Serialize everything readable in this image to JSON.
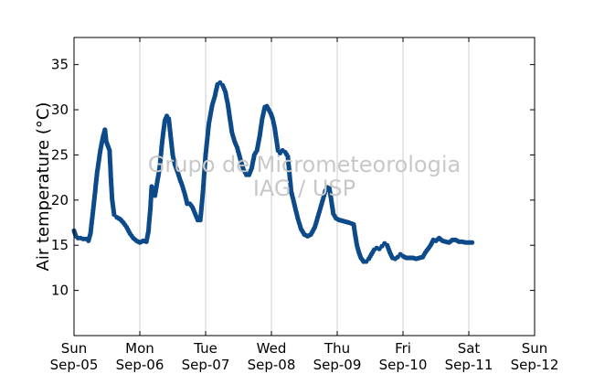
{
  "chart_data": {
    "type": "scatter",
    "title": "",
    "xlabel": "",
    "ylabel": "Air temperature (°C)",
    "ylim": [
      5,
      38
    ],
    "xlim_days": [
      0,
      7
    ],
    "yticks": [
      10,
      15,
      20,
      25,
      30,
      35
    ],
    "x_ticks": [
      {
        "day": "Sun",
        "date": "Sep-05"
      },
      {
        "day": "Mon",
        "date": "Sep-06"
      },
      {
        "day": "Tue",
        "date": "Sep-07"
      },
      {
        "day": "Wed",
        "date": "Sep-08"
      },
      {
        "day": "Thu",
        "date": "Sep-09"
      },
      {
        "day": "Fri",
        "date": "Sep-10"
      },
      {
        "day": "Sat",
        "date": "Sep-11"
      },
      {
        "day": "Sun",
        "date": "Sep-12"
      }
    ],
    "vertical_grid": true,
    "marker_color": "#0d4a8a",
    "watermark": [
      "Grupo de Micrometeorologia",
      "IAG / USP"
    ],
    "series": [
      {
        "values": [
          [
            0.0,
            16.6
          ],
          [
            0.03,
            16.0
          ],
          [
            0.06,
            15.8
          ],
          [
            0.1,
            15.8
          ],
          [
            0.14,
            15.7
          ],
          [
            0.18,
            15.7
          ],
          [
            0.22,
            15.5
          ],
          [
            0.25,
            16.3
          ],
          [
            0.3,
            19.5
          ],
          [
            0.35,
            23.0
          ],
          [
            0.4,
            25.5
          ],
          [
            0.44,
            27.0
          ],
          [
            0.47,
            27.8
          ],
          [
            0.49,
            26.5
          ],
          [
            0.52,
            25.9
          ],
          [
            0.54,
            25.5
          ],
          [
            0.56,
            22.5
          ],
          [
            0.58,
            20.0
          ],
          [
            0.61,
            18.4
          ],
          [
            0.65,
            18.1
          ],
          [
            0.7,
            17.9
          ],
          [
            0.75,
            17.5
          ],
          [
            0.8,
            17.0
          ],
          [
            0.85,
            16.3
          ],
          [
            0.9,
            15.8
          ],
          [
            0.95,
            15.5
          ],
          [
            1.0,
            15.3
          ],
          [
            1.05,
            15.5
          ],
          [
            1.1,
            15.4
          ],
          [
            1.13,
            16.5
          ],
          [
            1.16,
            19.0
          ],
          [
            1.18,
            21.5
          ],
          [
            1.2,
            21.0
          ],
          [
            1.23,
            20.5
          ],
          [
            1.26,
            21.8
          ],
          [
            1.3,
            23.5
          ],
          [
            1.34,
            26.5
          ],
          [
            1.38,
            28.8
          ],
          [
            1.41,
            29.3
          ],
          [
            1.44,
            29.0
          ],
          [
            1.47,
            27.0
          ],
          [
            1.5,
            25.0
          ],
          [
            1.53,
            24.0
          ],
          [
            1.57,
            23.2
          ],
          [
            1.61,
            22.3
          ],
          [
            1.65,
            21.5
          ],
          [
            1.69,
            20.5
          ],
          [
            1.72,
            19.6
          ],
          [
            1.76,
            19.6
          ],
          [
            1.8,
            19.2
          ],
          [
            1.84,
            18.5
          ],
          [
            1.88,
            17.8
          ],
          [
            1.92,
            17.8
          ],
          [
            1.96,
            21.0
          ],
          [
            2.0,
            25.0
          ],
          [
            2.05,
            28.5
          ],
          [
            2.1,
            30.5
          ],
          [
            2.14,
            31.5
          ],
          [
            2.18,
            32.8
          ],
          [
            2.22,
            33.0
          ],
          [
            2.26,
            32.7
          ],
          [
            2.3,
            32.0
          ],
          [
            2.34,
            30.5
          ],
          [
            2.37,
            29.0
          ],
          [
            2.4,
            27.5
          ],
          [
            2.44,
            26.5
          ],
          [
            2.48,
            25.8
          ],
          [
            2.51,
            25.0
          ],
          [
            2.54,
            24.2
          ],
          [
            2.58,
            23.3
          ],
          [
            2.62,
            22.8
          ],
          [
            2.66,
            22.8
          ],
          [
            2.7,
            23.5
          ],
          [
            2.74,
            25.0
          ],
          [
            2.78,
            25.5
          ],
          [
            2.82,
            27.0
          ],
          [
            2.86,
            29.0
          ],
          [
            2.9,
            30.3
          ],
          [
            2.93,
            30.4
          ],
          [
            2.96,
            30.0
          ],
          [
            2.99,
            29.6
          ],
          [
            3.02,
            29.0
          ],
          [
            3.05,
            28.0
          ],
          [
            3.08,
            26.5
          ],
          [
            3.1,
            25.5
          ],
          [
            3.13,
            25.2
          ],
          [
            3.17,
            25.5
          ],
          [
            3.21,
            25.3
          ],
          [
            3.25,
            24.8
          ],
          [
            3.3,
            21.0
          ],
          [
            3.35,
            19.5
          ],
          [
            3.4,
            18.0
          ],
          [
            3.45,
            16.8
          ],
          [
            3.5,
            16.2
          ],
          [
            3.55,
            16.0
          ],
          [
            3.6,
            16.2
          ],
          [
            3.66,
            17.0
          ],
          [
            3.72,
            18.5
          ],
          [
            3.78,
            20.0
          ],
          [
            3.82,
            21.0
          ],
          [
            3.85,
            21.4
          ],
          [
            3.88,
            21.3
          ],
          [
            3.91,
            20.0
          ],
          [
            3.94,
            18.5
          ],
          [
            3.98,
            18.0
          ],
          [
            4.03,
            17.8
          ],
          [
            4.08,
            17.7
          ],
          [
            4.13,
            17.6
          ],
          [
            4.18,
            17.5
          ],
          [
            4.22,
            17.4
          ],
          [
            4.25,
            17.3
          ],
          [
            4.27,
            16.3
          ],
          [
            4.3,
            15.0
          ],
          [
            4.33,
            14.2
          ],
          [
            4.36,
            13.6
          ],
          [
            4.4,
            13.2
          ],
          [
            4.44,
            13.2
          ],
          [
            4.48,
            13.5
          ],
          [
            4.52,
            14.0
          ],
          [
            4.56,
            14.5
          ],
          [
            4.6,
            14.7
          ],
          [
            4.64,
            14.6
          ],
          [
            4.68,
            14.9
          ],
          [
            4.72,
            15.2
          ],
          [
            4.76,
            15.0
          ],
          [
            4.8,
            14.2
          ],
          [
            4.84,
            13.6
          ],
          [
            4.88,
            13.5
          ],
          [
            4.92,
            13.7
          ],
          [
            4.96,
            14.0
          ],
          [
            5.0,
            13.8
          ],
          [
            5.05,
            13.6
          ],
          [
            5.1,
            13.6
          ],
          [
            5.15,
            13.6
          ],
          [
            5.2,
            13.5
          ],
          [
            5.25,
            13.6
          ],
          [
            5.3,
            13.7
          ],
          [
            5.34,
            14.2
          ],
          [
            5.38,
            14.6
          ],
          [
            5.42,
            15.0
          ],
          [
            5.46,
            15.6
          ],
          [
            5.5,
            15.5
          ],
          [
            5.55,
            15.8
          ],
          [
            5.6,
            15.5
          ],
          [
            5.65,
            15.4
          ],
          [
            5.7,
            15.3
          ],
          [
            5.75,
            15.6
          ],
          [
            5.8,
            15.6
          ],
          [
            5.85,
            15.4
          ],
          [
            5.9,
            15.4
          ],
          [
            5.95,
            15.3
          ],
          [
            6.0,
            15.3
          ],
          [
            6.05,
            15.3
          ]
        ]
      }
    ]
  }
}
